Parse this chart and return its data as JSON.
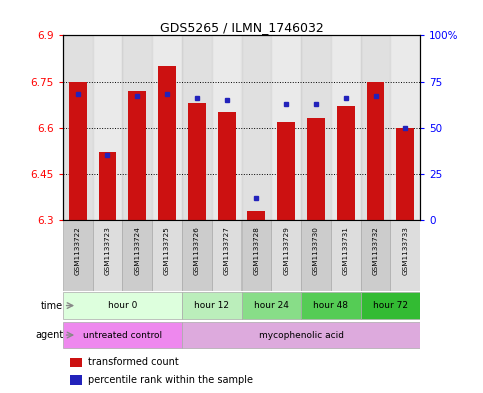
{
  "title": "GDS5265 / ILMN_1746032",
  "samples": [
    "GSM1133722",
    "GSM1133723",
    "GSM1133724",
    "GSM1133725",
    "GSM1133726",
    "GSM1133727",
    "GSM1133728",
    "GSM1133729",
    "GSM1133730",
    "GSM1133731",
    "GSM1133732",
    "GSM1133733"
  ],
  "red_values": [
    6.75,
    6.52,
    6.72,
    6.8,
    6.68,
    6.65,
    6.33,
    6.62,
    6.63,
    6.67,
    6.75,
    6.6
  ],
  "blue_values_pct": [
    68,
    35,
    67,
    68,
    66,
    65,
    12,
    63,
    63,
    66,
    67,
    50
  ],
  "ylim": [
    6.3,
    6.9
  ],
  "yticks_left": [
    6.3,
    6.45,
    6.6,
    6.75,
    6.9
  ],
  "yticks_right": [
    0,
    25,
    50,
    75,
    100
  ],
  "yticks_right_labels": [
    "0",
    "25",
    "50",
    "75",
    "100%"
  ],
  "bar_color": "#cc1111",
  "blue_color": "#2222bb",
  "sample_bg_even": "#cccccc",
  "sample_bg_odd": "#dddddd",
  "plot_bg": "#ffffff",
  "time_groups": [
    {
      "label": "hour 0",
      "start": 0,
      "end": 4,
      "color": "#ddffdd"
    },
    {
      "label": "hour 12",
      "start": 4,
      "end": 6,
      "color": "#bbeebb"
    },
    {
      "label": "hour 24",
      "start": 6,
      "end": 8,
      "color": "#88dd88"
    },
    {
      "label": "hour 48",
      "start": 8,
      "end": 10,
      "color": "#55cc55"
    },
    {
      "label": "hour 72",
      "start": 10,
      "end": 12,
      "color": "#33bb33"
    }
  ],
  "agent_groups": [
    {
      "label": "untreated control",
      "start": 0,
      "end": 4,
      "color": "#ee88ee"
    },
    {
      "label": "mycophenolic acid",
      "start": 4,
      "end": 12,
      "color": "#ddaadd"
    }
  ],
  "legend_red": "transformed count",
  "legend_blue": "percentile rank within the sample",
  "time_label": "time",
  "agent_label": "agent",
  "border_color": "#aaaaaa",
  "grid_dotted_color": "#555555"
}
